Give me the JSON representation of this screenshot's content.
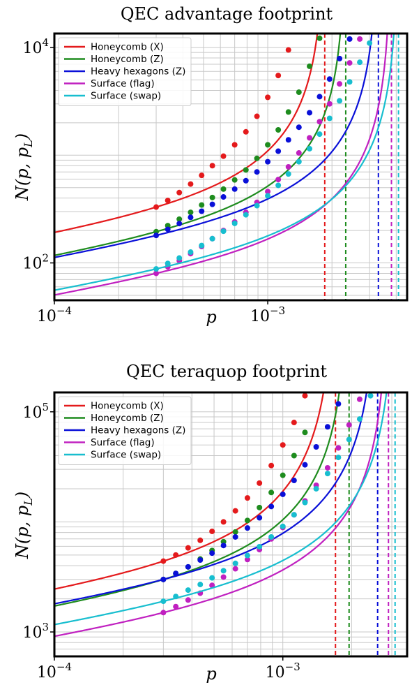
{
  "chart_data": [
    {
      "type": "line",
      "title": "QEC advantage footprint",
      "xlabel": "p",
      "ylabel": "N(p, p_L)",
      "xscale": "log",
      "yscale": "log",
      "xlim": [
        0.0001,
        0.0045
      ],
      "ylim": [
        45,
        13500
      ],
      "x_ticks": [
        {
          "value": 0.0001,
          "base": "10",
          "exp": "−4"
        },
        {
          "value": 0.001,
          "base": "10",
          "exp": "−3"
        }
      ],
      "y_ticks": [
        {
          "value": 100,
          "base": "10",
          "exp": "2"
        },
        {
          "value": 10000,
          "base": "10",
          "exp": "4"
        }
      ],
      "grid": true,
      "legend_position": "top-left",
      "series": [
        {
          "name": "Honeycomb (X)",
          "color": "#e41a1c",
          "curve": {
            "A": 9.0,
            "pth": 0.00185,
            "k": 1.3
          },
          "points": {
            "x": [
              0.0003,
              0.00034,
              0.000385,
              0.000435,
              0.00049,
              0.00055,
              0.00062,
              0.0007,
              0.00079,
              0.00089,
              0.001,
              0.00112,
              0.00125,
              0.0014
            ],
            "y": [
              330,
              380,
              450,
              540,
              650,
              800,
              980,
              1250,
              1650,
              2300,
              3450,
              5500,
              9500,
              16000
            ]
          }
        },
        {
          "name": "Honeycomb (Z)",
          "color": "#1e8c1e",
          "curve": {
            "A": 5.6,
            "pth": 0.00232,
            "k": 1.3
          },
          "points": {
            "x": [
              0.0003,
              0.00034,
              0.000385,
              0.000435,
              0.00049,
              0.00055,
              0.00062,
              0.0007,
              0.00079,
              0.00089,
              0.001,
              0.00112,
              0.00125,
              0.0014,
              0.00157,
              0.00175
            ],
            "y": [
              195,
              222,
              255,
              295,
              345,
              405,
              485,
              590,
              730,
              935,
              1250,
              1720,
              2520,
              3850,
              6700,
              12200
            ]
          }
        },
        {
          "name": "Heavy hexagons (Z)",
          "color": "#0a10d8",
          "curve": {
            "A": 4.7,
            "pth": 0.0033,
            "k": 1.35
          },
          "points": {
            "x": [
              0.0003,
              0.00034,
              0.000385,
              0.000435,
              0.00049,
              0.00055,
              0.00062,
              0.0007,
              0.00079,
              0.00089,
              0.001,
              0.00112,
              0.00125,
              0.0014,
              0.00157,
              0.00175,
              0.00195,
              0.00217,
              0.00242
            ],
            "y": [
              180,
              205,
              232,
              265,
              302,
              350,
              410,
              485,
              580,
              700,
              870,
              1090,
              1390,
              1820,
              2480,
              3500,
              5100,
              7900,
              12000
            ]
          }
        },
        {
          "name": "Surface (flag)",
          "color": "#c020c0",
          "curve": {
            "A": 2.35,
            "pth": 0.0038,
            "k": 1.4
          },
          "points": {
            "x": [
              0.0003,
              0.00034,
              0.000385,
              0.000435,
              0.00049,
              0.00055,
              0.00062,
              0.0007,
              0.00079,
              0.00089,
              0.001,
              0.00112,
              0.00125,
              0.0014,
              0.00157,
              0.00175,
              0.00195,
              0.00217,
              0.00242,
              0.0027
            ],
            "y": [
              80,
              92,
              105,
              122,
              142,
              168,
              200,
              240,
              295,
              365,
              460,
              595,
              780,
              1050,
              1450,
              2050,
              3000,
              4600,
              7200,
              12000
            ]
          }
        },
        {
          "name": "Surface (swap)",
          "color": "#17becf",
          "curve": {
            "A": 2.75,
            "pth": 0.0041,
            "k": 1.4
          },
          "points": {
            "x": [
              0.0003,
              0.00034,
              0.000385,
              0.000435,
              0.00049,
              0.00055,
              0.00062,
              0.0007,
              0.00079,
              0.00089,
              0.001,
              0.00112,
              0.00125,
              0.0014,
              0.00157,
              0.00175,
              0.00195,
              0.00217,
              0.00242,
              0.0027,
              0.003
            ],
            "y": [
              88,
              99,
              111,
              126,
              145,
              168,
              197,
              233,
              280,
              340,
              420,
              525,
              670,
              870,
              1150,
              1570,
              2200,
              3200,
              4800,
              7300,
              11000
            ]
          }
        }
      ],
      "thresholds": [
        {
          "x": 0.00185,
          "color": "#e41a1c"
        },
        {
          "x": 0.00232,
          "color": "#1e8c1e"
        },
        {
          "x": 0.0033,
          "color": "#0a10d8"
        },
        {
          "x": 0.0038,
          "color": "#c020c0"
        },
        {
          "x": 0.0041,
          "color": "#17becf"
        }
      ]
    },
    {
      "type": "line",
      "title": "QEC teraquop footprint",
      "xlabel": "p",
      "ylabel": "N(p, p_L)",
      "xscale": "log",
      "yscale": "log",
      "xlim": [
        0.0001,
        0.0035
      ],
      "ylim": [
        600,
        150000
      ],
      "x_ticks": [
        {
          "value": 0.0001,
          "base": "10",
          "exp": "−4"
        },
        {
          "value": 0.001,
          "base": "10",
          "exp": "−3"
        }
      ],
      "y_ticks": [
        {
          "value": 1000,
          "base": "10",
          "exp": "3"
        },
        {
          "value": 100000,
          "base": "10",
          "exp": "5"
        }
      ],
      "grid": true,
      "legend_position": "top-left",
      "series": [
        {
          "name": "Honeycomb (X)",
          "color": "#e41a1c",
          "curve": {
            "A": 400,
            "pth": 0.0017,
            "k": 1.5
          },
          "points": {
            "x": [
              0.0003,
              0.00034,
              0.000385,
              0.000435,
              0.00049,
              0.00055,
              0.00062,
              0.0007,
              0.00079,
              0.00089,
              0.001,
              0.00112,
              0.00125,
              0.0014
            ],
            "y": [
              4400,
              5000,
              5800,
              6800,
              8200,
              10000,
              12600,
              16500,
              22500,
              32500,
              50000,
              80000,
              140000,
              260000
            ]
          }
        },
        {
          "name": "Honeycomb (Z)",
          "color": "#1e8c1e",
          "curve": {
            "A": 310,
            "pth": 0.00195,
            "k": 1.5
          },
          "points": {
            "x": [
              0.0003,
              0.00034,
              0.000385,
              0.000435,
              0.00049,
              0.00055,
              0.00062,
              0.0007,
              0.00079,
              0.00089,
              0.001,
              0.00112,
              0.00125
            ],
            "y": [
              3000,
              3400,
              3900,
              4600,
              5500,
              6600,
              8100,
              10300,
              13500,
              18500,
              26500,
              40000,
              65000
            ]
          }
        },
        {
          "name": "Heavy hexagons (Z)",
          "color": "#0a10d8",
          "curve": {
            "A": 450,
            "pth": 0.0026,
            "k": 1.5
          },
          "points": {
            "x": [
              0.0003,
              0.00034,
              0.000385,
              0.000435,
              0.00049,
              0.00055,
              0.00062,
              0.0007,
              0.00079,
              0.00089,
              0.001,
              0.00112,
              0.00125,
              0.0014,
              0.00157,
              0.00175,
              0.00195
            ],
            "y": [
              3000,
              3400,
              3900,
              4500,
              5200,
              6100,
              7300,
              8800,
              10900,
              13800,
              17800,
              23800,
              33000,
              48000,
              73000,
              118000,
              205000
            ]
          }
        },
        {
          "name": "Surface (flag)",
          "color": "#c020c0",
          "curve": {
            "A": 240,
            "pth": 0.0029,
            "k": 1.5
          },
          "points": {
            "x": [
              0.0003,
              0.00034,
              0.000385,
              0.000435,
              0.00049,
              0.00055,
              0.00062,
              0.0007,
              0.00079,
              0.00089,
              0.001,
              0.00112,
              0.00125,
              0.0014,
              0.00157,
              0.00175,
              0.00195,
              0.00217,
              0.00242
            ],
            "y": [
              1500,
              1700,
              1950,
              2250,
              2650,
              3150,
              3750,
              4550,
              5600,
              7000,
              8900,
              11600,
              15500,
              21500,
              31000,
              47000,
              76000,
              130000,
              240000
            ]
          }
        },
        {
          "name": "Surface (swap)",
          "color": "#17becf",
          "curve": {
            "A": 330,
            "pth": 0.0031,
            "k": 1.5
          },
          "points": {
            "x": [
              0.0003,
              0.00034,
              0.000385,
              0.000435,
              0.00049,
              0.00055,
              0.00062,
              0.0007,
              0.00079,
              0.00089,
              0.001,
              0.00112,
              0.00125,
              0.0014,
              0.00157,
              0.00175,
              0.00195,
              0.00217,
              0.00242,
              0.0027
            ],
            "y": [
              1900,
              2100,
              2400,
              2700,
              3100,
              3600,
              4200,
              4950,
              5950,
              7300,
              9100,
              11600,
              15000,
              20000,
              27500,
              38500,
              56000,
              86000,
              140000,
              260000
            ]
          }
        }
      ],
      "thresholds": [
        {
          "x": 0.0017,
          "color": "#e41a1c"
        },
        {
          "x": 0.00195,
          "color": "#1e8c1e"
        },
        {
          "x": 0.0026,
          "color": "#0a10d8"
        },
        {
          "x": 0.0029,
          "color": "#c020c0"
        },
        {
          "x": 0.0031,
          "color": "#17becf"
        }
      ]
    }
  ]
}
